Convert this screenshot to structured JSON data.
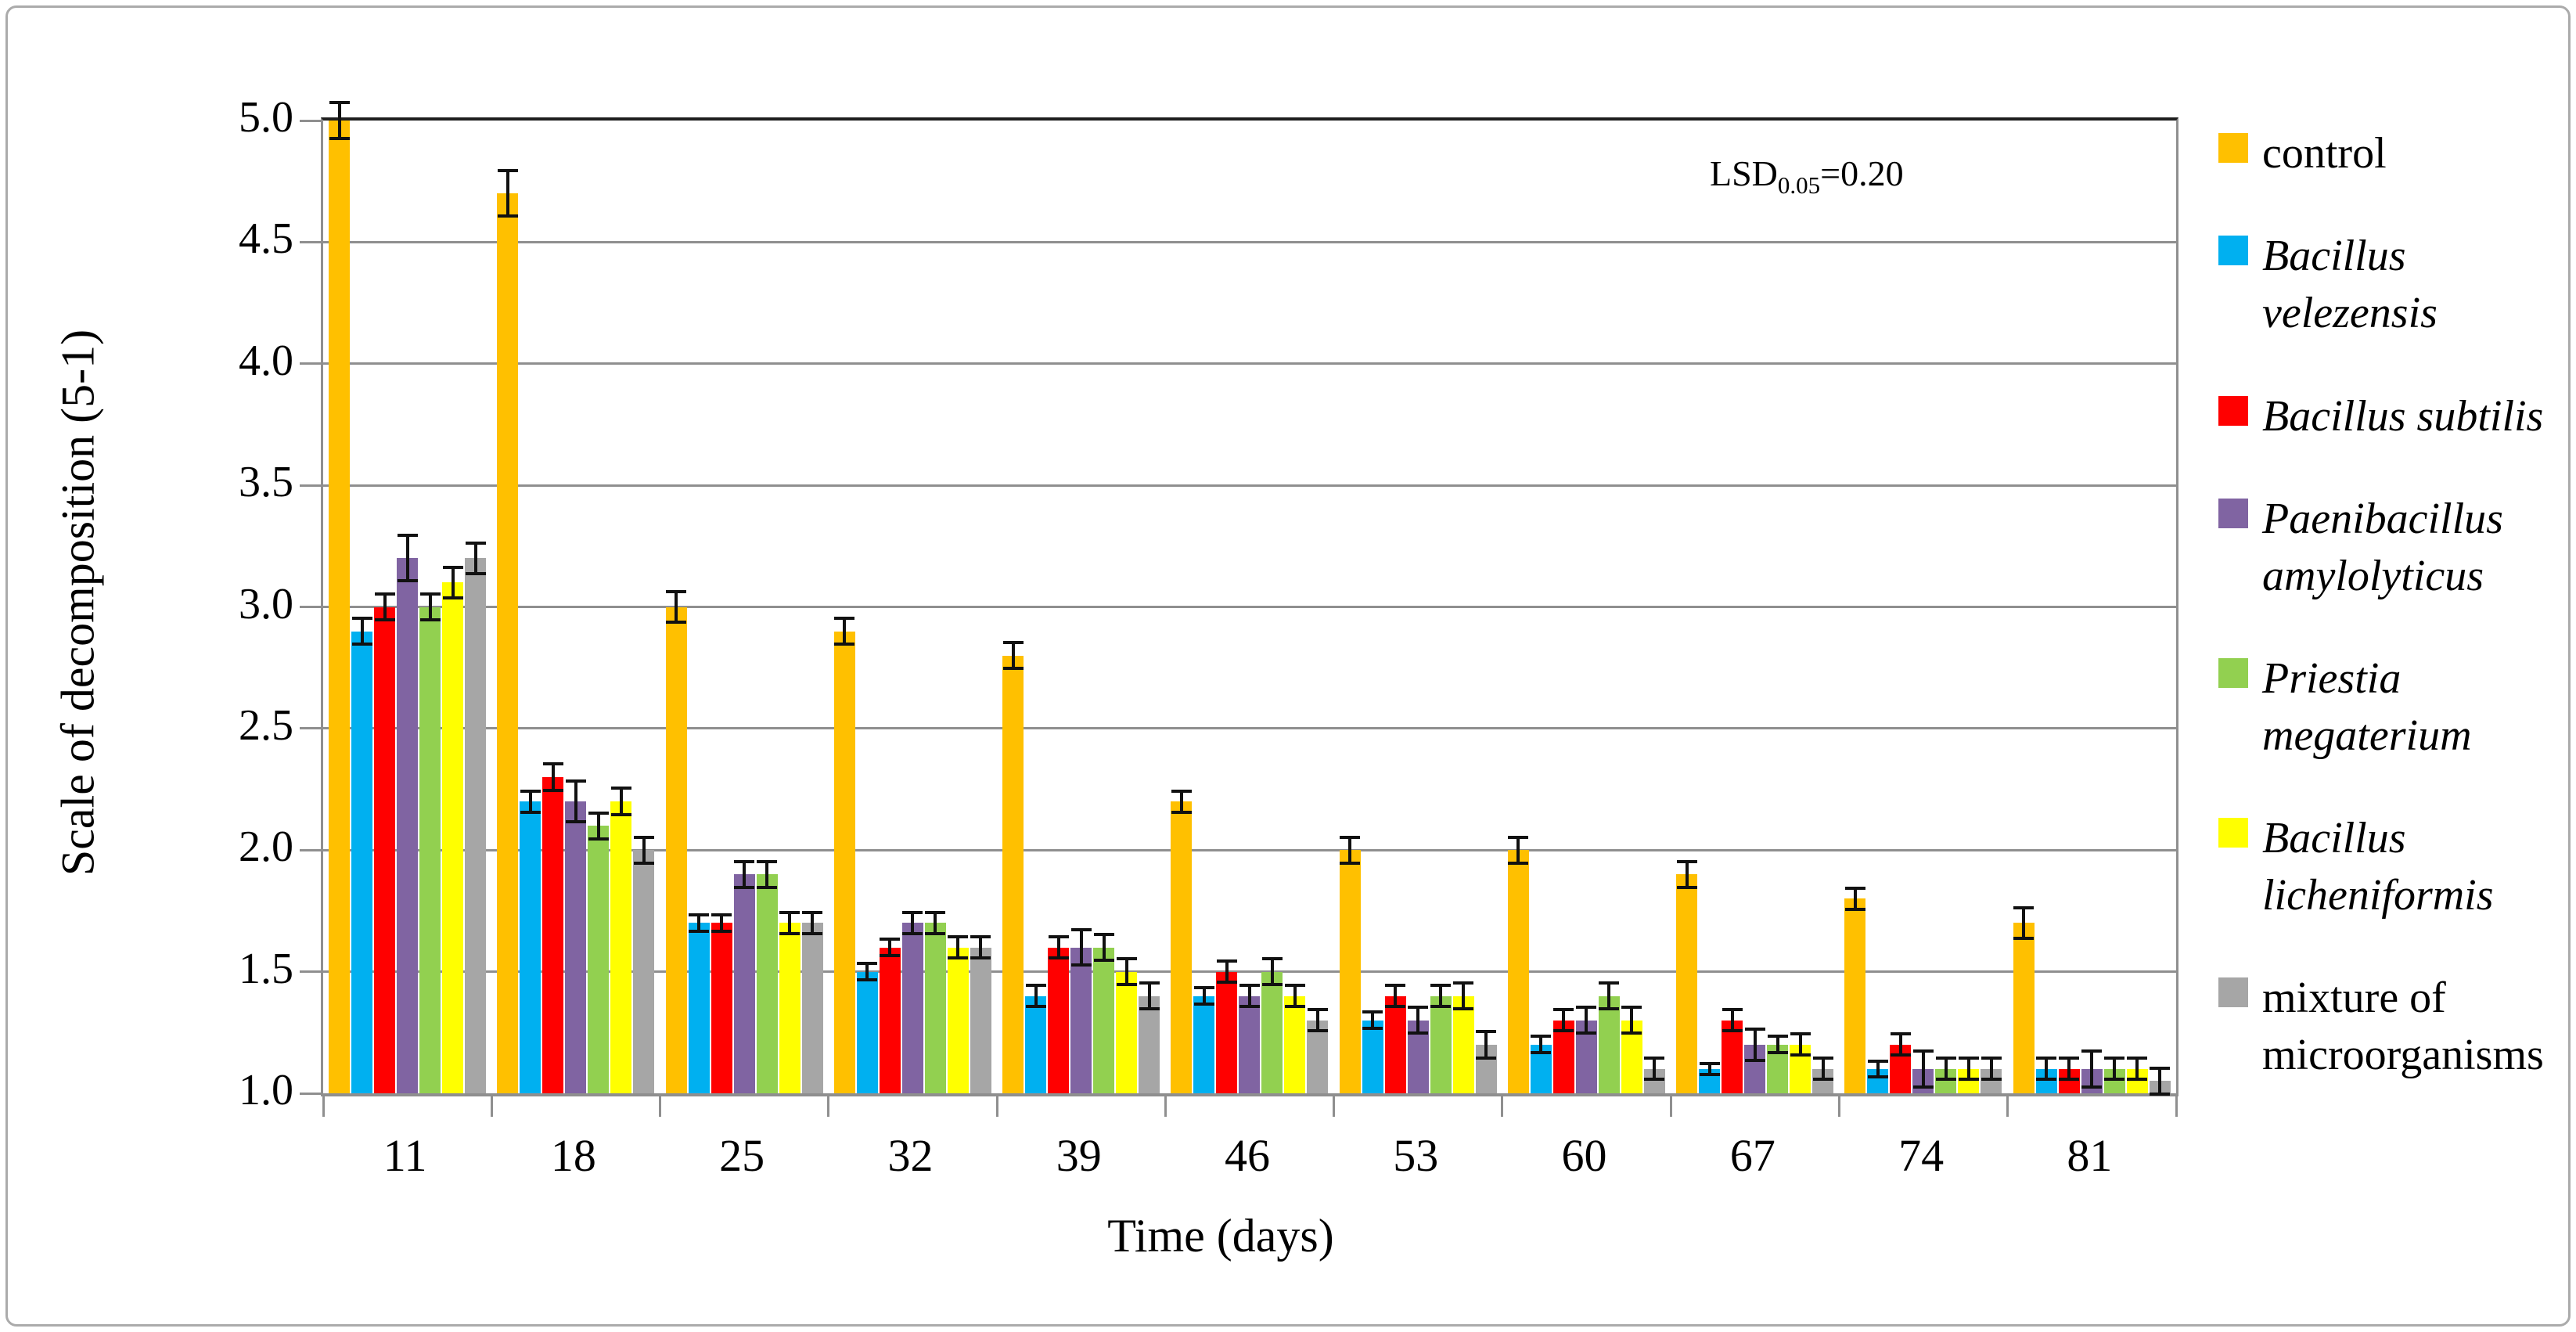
{
  "figure": {
    "y_axis_title": "Scale of decomposition (5-1)",
    "x_axis_title": "Time (days)"
  },
  "annotation": {
    "prefix": "LSD",
    "sub": "0.05",
    "value": "=0.20"
  },
  "chart_data": {
    "type": "bar",
    "title": "",
    "xlabel": "Time (days)",
    "ylabel": "Scale of decomposition (5-1)",
    "ylim": [
      1.0,
      5.0
    ],
    "ytick_step": 0.5,
    "ytick_labels": [
      "5.0",
      "4.5",
      "4.0",
      "3.5",
      "3.0",
      "2.5",
      "2.0",
      "1.5",
      "1.0"
    ],
    "grid": true,
    "legend_position": "right",
    "error_bars": true,
    "annotation_text": "LSD0.05=0.20",
    "categories": [
      "11",
      "18",
      "25",
      "32",
      "39",
      "46",
      "53",
      "60",
      "67",
      "74",
      "81"
    ],
    "series": [
      {
        "name": "control",
        "key": "control",
        "italic": false,
        "label_lines": [
          "control"
        ],
        "color": "#FFC000",
        "values": [
          5.0,
          4.7,
          3.0,
          2.9,
          2.8,
          2.2,
          2.0,
          2.0,
          1.9,
          1.8,
          1.7
        ],
        "errors": [
          0.08,
          0.1,
          0.07,
          0.06,
          0.06,
          0.05,
          0.06,
          0.06,
          0.06,
          0.05,
          0.07
        ]
      },
      {
        "name": "Bacillus velezensis",
        "key": "bacillus-velezensis",
        "italic": true,
        "label_lines": [
          "Bacillus",
          "velezensis"
        ],
        "color": "#00B0F0",
        "values": [
          2.9,
          2.2,
          1.7,
          1.5,
          1.4,
          1.4,
          1.3,
          1.2,
          1.1,
          1.1,
          1.1
        ],
        "errors": [
          0.06,
          0.05,
          0.04,
          0.04,
          0.05,
          0.04,
          0.04,
          0.04,
          0.03,
          0.04,
          0.05
        ]
      },
      {
        "name": "Bacillus subtilis",
        "key": "bacillus-subtilis",
        "italic": true,
        "label_lines": [
          "Bacillus subtilis"
        ],
        "color": "#FF0000",
        "values": [
          3.0,
          2.3,
          1.7,
          1.6,
          1.6,
          1.5,
          1.4,
          1.3,
          1.3,
          1.2,
          1.1
        ],
        "errors": [
          0.06,
          0.06,
          0.04,
          0.04,
          0.05,
          0.05,
          0.05,
          0.05,
          0.05,
          0.05,
          0.05
        ]
      },
      {
        "name": "Paenibacillus amylolyticus",
        "key": "paenibacillus-amylolyticus",
        "italic": true,
        "label_lines": [
          "Paenibacillus",
          "amylolyticus"
        ],
        "color": "#8064A2",
        "values": [
          3.2,
          2.2,
          1.9,
          1.7,
          1.6,
          1.4,
          1.3,
          1.3,
          1.2,
          1.1,
          1.1
        ],
        "errors": [
          0.1,
          0.09,
          0.06,
          0.05,
          0.08,
          0.05,
          0.06,
          0.06,
          0.07,
          0.08,
          0.08
        ]
      },
      {
        "name": "Priestia megaterium",
        "key": "priestia-megaterium",
        "italic": true,
        "label_lines": [
          "Priestia",
          "megaterium"
        ],
        "color": "#92D050",
        "values": [
          3.0,
          2.1,
          1.9,
          1.7,
          1.6,
          1.5,
          1.4,
          1.4,
          1.2,
          1.1,
          1.1
        ],
        "errors": [
          0.06,
          0.06,
          0.06,
          0.05,
          0.06,
          0.06,
          0.05,
          0.06,
          0.04,
          0.05,
          0.05
        ]
      },
      {
        "name": "Bacillus licheniformis",
        "key": "bacillus-licheniformis",
        "italic": true,
        "label_lines": [
          "Bacillus",
          "licheniformis"
        ],
        "color": "#FFFF00",
        "values": [
          3.1,
          2.2,
          1.7,
          1.6,
          1.5,
          1.4,
          1.4,
          1.3,
          1.2,
          1.1,
          1.1
        ],
        "errors": [
          0.07,
          0.06,
          0.05,
          0.05,
          0.06,
          0.05,
          0.06,
          0.06,
          0.05,
          0.05,
          0.05
        ]
      },
      {
        "name": "mixture of microorganisms",
        "key": "mixture-of-microorganisms",
        "italic": false,
        "label_lines": [
          "mixture of",
          "microorganisms"
        ],
        "color": "#A6A6A6",
        "values": [
          3.2,
          2.0,
          1.7,
          1.6,
          1.4,
          1.3,
          1.2,
          1.1,
          1.1,
          1.1,
          1.05
        ],
        "errors": [
          0.07,
          0.06,
          0.05,
          0.05,
          0.06,
          0.05,
          0.06,
          0.05,
          0.05,
          0.05,
          0.06
        ]
      }
    ]
  }
}
